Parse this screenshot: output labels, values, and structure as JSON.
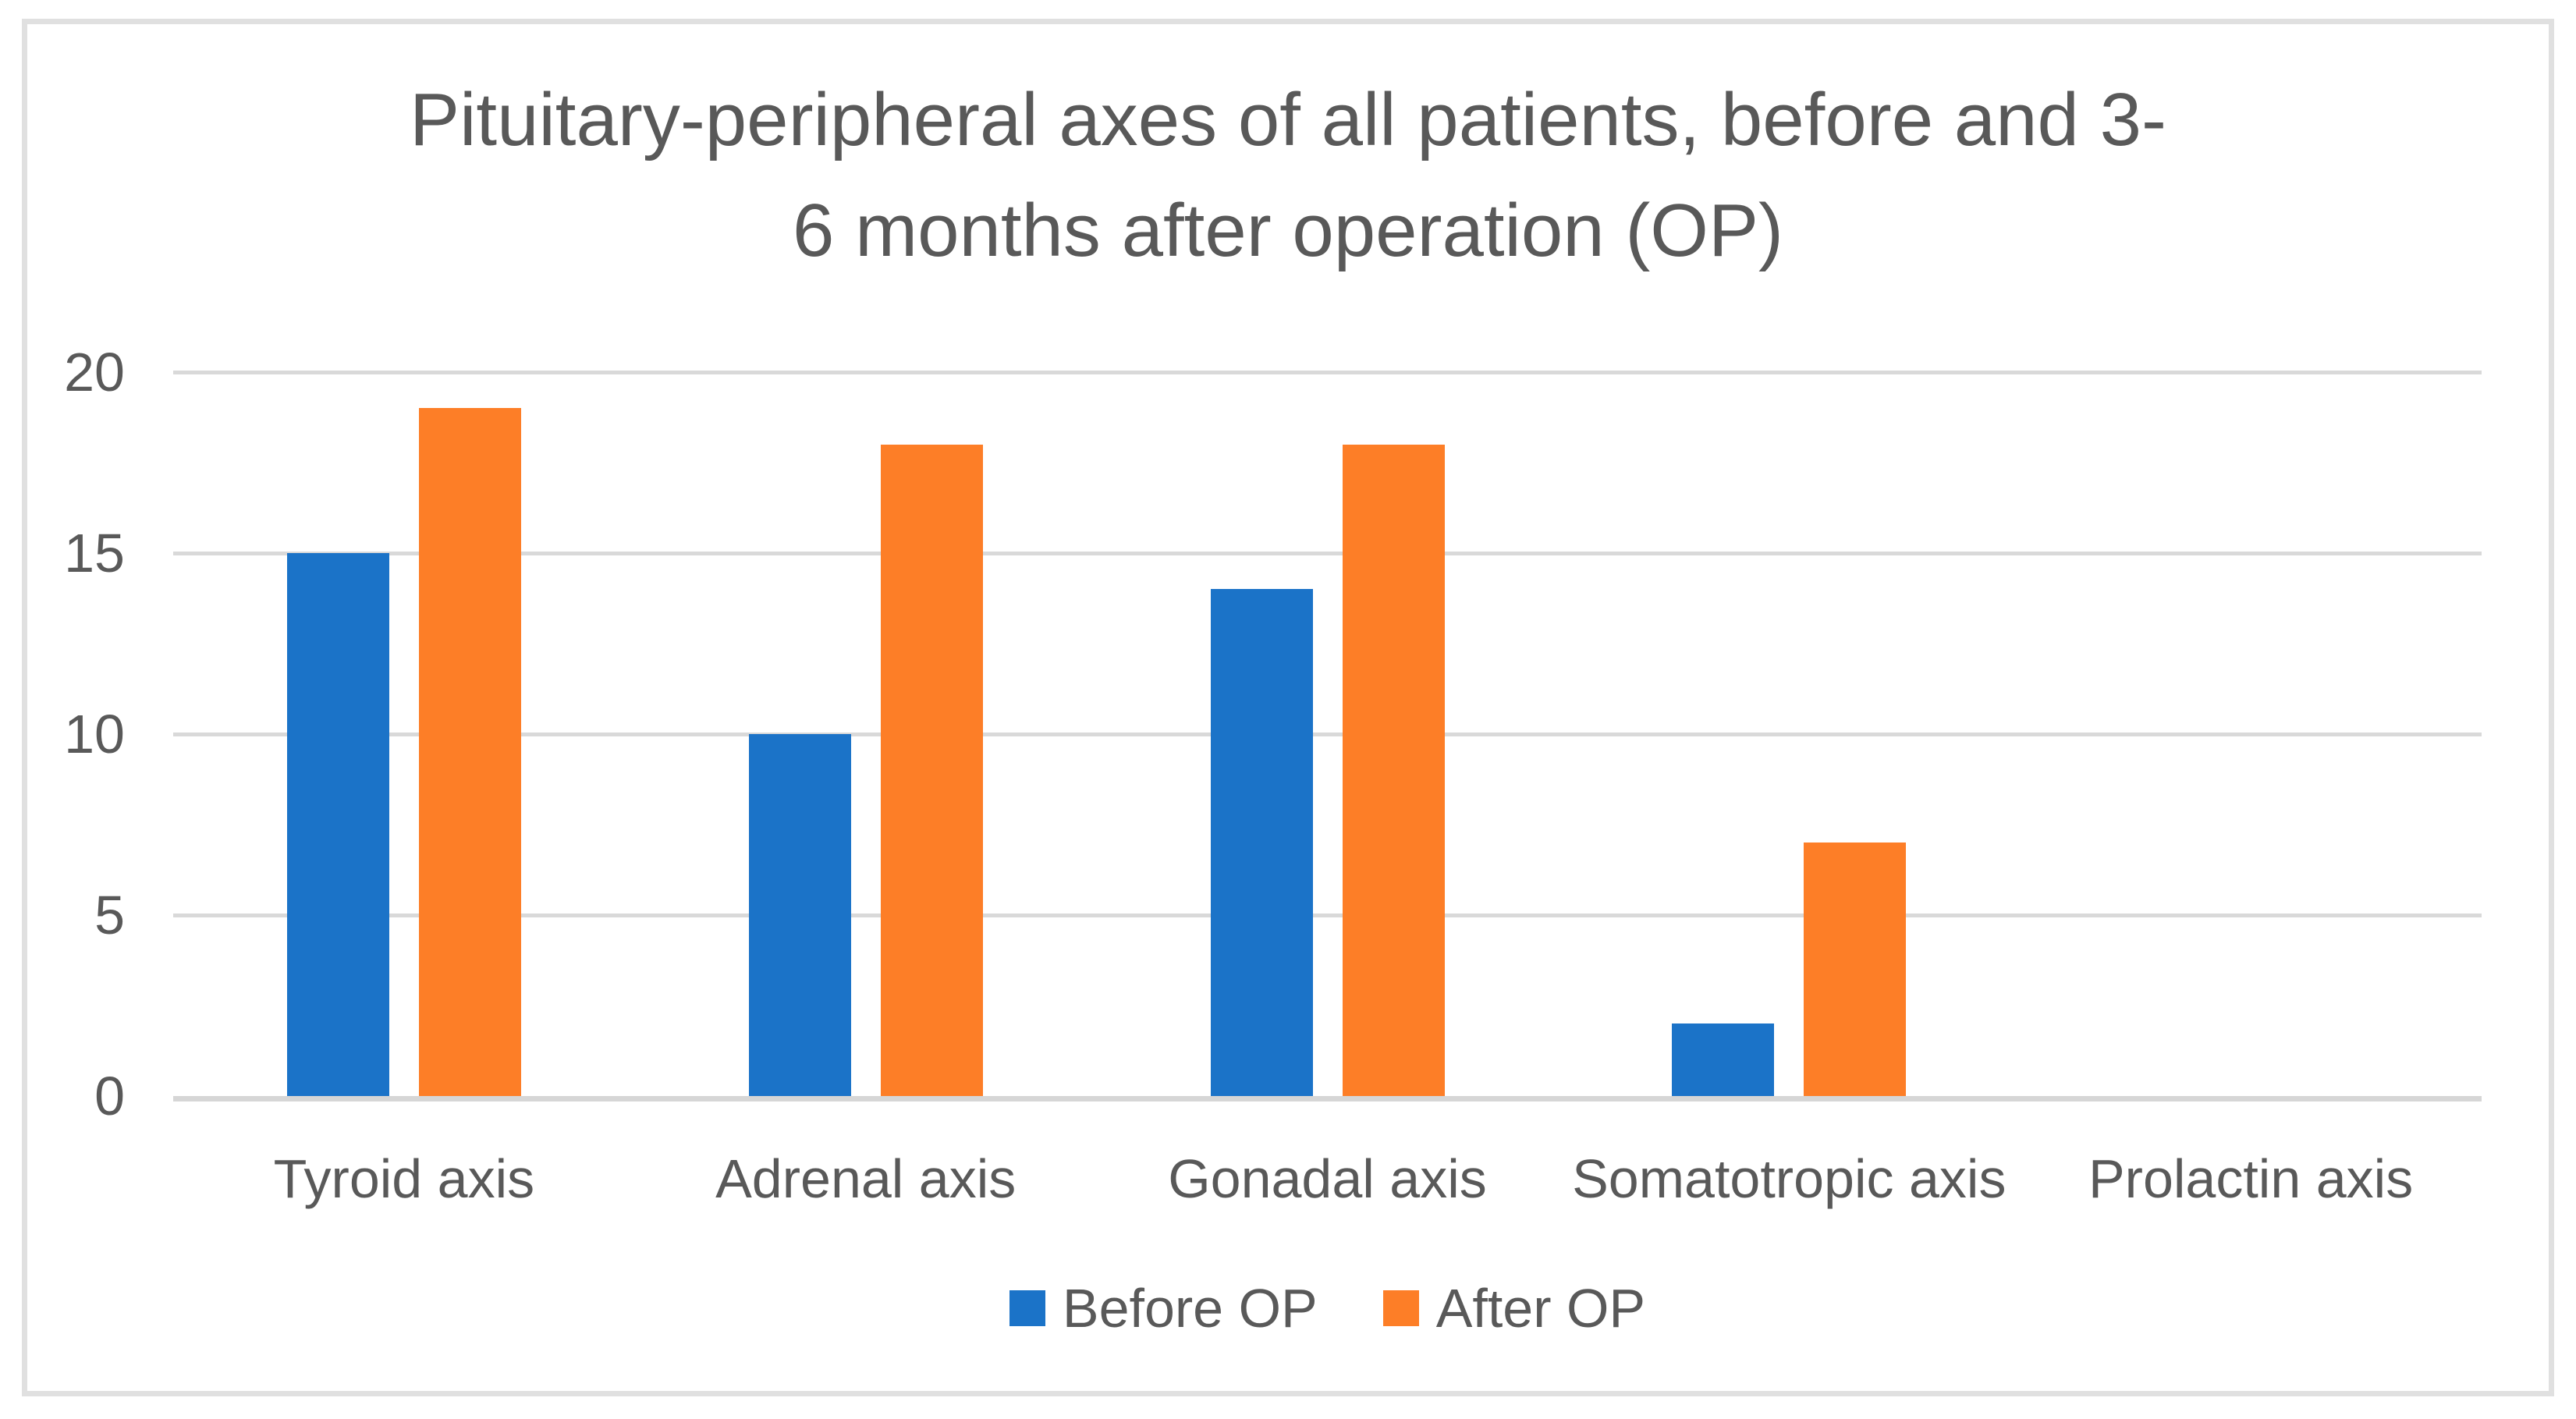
{
  "chart_data": {
    "type": "bar",
    "title": "Pituitary-peripheral axes of all patients, before and 3-6 months after operation (OP)",
    "title_lines": [
      "Pituitary-peripheral axes of all patients, before and 3-",
      "6 months after operation (OP)"
    ],
    "categories": [
      "Tyroid axis",
      "Adrenal axis",
      "Gonadal axis",
      "Somatotropic axis",
      "Prolactin axis"
    ],
    "series": [
      {
        "name": "Before OP",
        "color": "#1b73c8",
        "values": [
          15,
          10,
          14,
          2,
          0
        ]
      },
      {
        "name": "After OP",
        "color": "#fd7e27",
        "values": [
          19,
          18,
          18,
          7,
          0
        ]
      }
    ],
    "xlabel": "",
    "ylabel": "",
    "ylim": [
      0,
      20
    ],
    "yticks": [
      20,
      15,
      10,
      5,
      0
    ],
    "grid": true,
    "legend_position": "bottom"
  },
  "colors": {
    "bar_before": "#1b73c8",
    "bar_after": "#fd7e27",
    "gridline": "#d9d9d9",
    "axis_line": "#d6d6d6",
    "label_text": "#595959",
    "title_text": "#595959",
    "frame_border": "#e0e0e0",
    "background": "#ffffff"
  }
}
